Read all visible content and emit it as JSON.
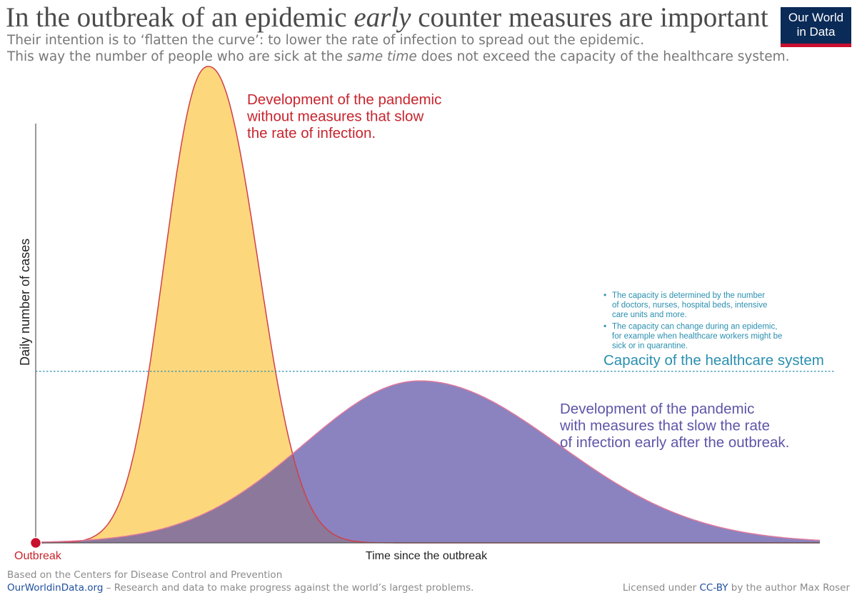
{
  "header": {
    "title_part1": "In the outbreak of an epidemic ",
    "title_em": "early",
    "title_part2": " counter measures are important",
    "subtitle1": "Their intention is to ‘flatten the curve’: to lower the rate of infection to spread out the epidemic.",
    "subtitle2_part1": "This way the number of people who are sick at the ",
    "subtitle2_em": "same time",
    "subtitle2_part2": " does not exceed the capacity of the healthcare system.",
    "logo_line1": "Our World",
    "logo_line2": "in Data"
  },
  "chart_data": {
    "type": "area",
    "xlabel": "Time since the outbreak",
    "ylabel": "Daily number of cases",
    "origin_label": "Outbreak",
    "axis_ticks": "none",
    "series": [
      {
        "key": "no_measures",
        "fill": "#fdd77c",
        "stroke": "#d0404a",
        "peak_x": 0.22,
        "peak_y": 1.0,
        "label_lines": [
          "Development of the pandemic",
          "without measures that slow",
          "the rate of infection."
        ],
        "label_color": "#c8252e"
      },
      {
        "key": "with_measures",
        "fill": "#5e53a6",
        "stroke": "#e07a9e",
        "peak_x": 0.49,
        "peak_y": 0.34,
        "label_lines": [
          "Development of the pandemic",
          "with measures that slow the rate",
          "of infection early after the outbreak."
        ],
        "label_color": "#5e55a8"
      }
    ],
    "capacity": {
      "label": "Capacity of the healthcare system",
      "level": 0.36,
      "color": "#2a8fb0",
      "notes": [
        [
          "The capacity is determined by the number",
          "of doctors, nurses, hospital beds, intensive",
          "care units and more."
        ],
        [
          "The capacity can change during an epidemic,",
          "for example when healthcare workers might be",
          "sick or in quarantine."
        ]
      ]
    },
    "colors": {
      "axis": "#555555",
      "origin_dot": "#c8102e",
      "origin_label": "#c8252e"
    }
  },
  "footer": {
    "source": "Based on the Centers for Disease Control and Prevention",
    "site": "OurWorldinData.org",
    "tagline": " – Research and data to make progress against the world’s largest problems.",
    "license_pre": "Licensed under ",
    "license_link": "CC-BY",
    "license_post": " by the author Max Roser"
  }
}
